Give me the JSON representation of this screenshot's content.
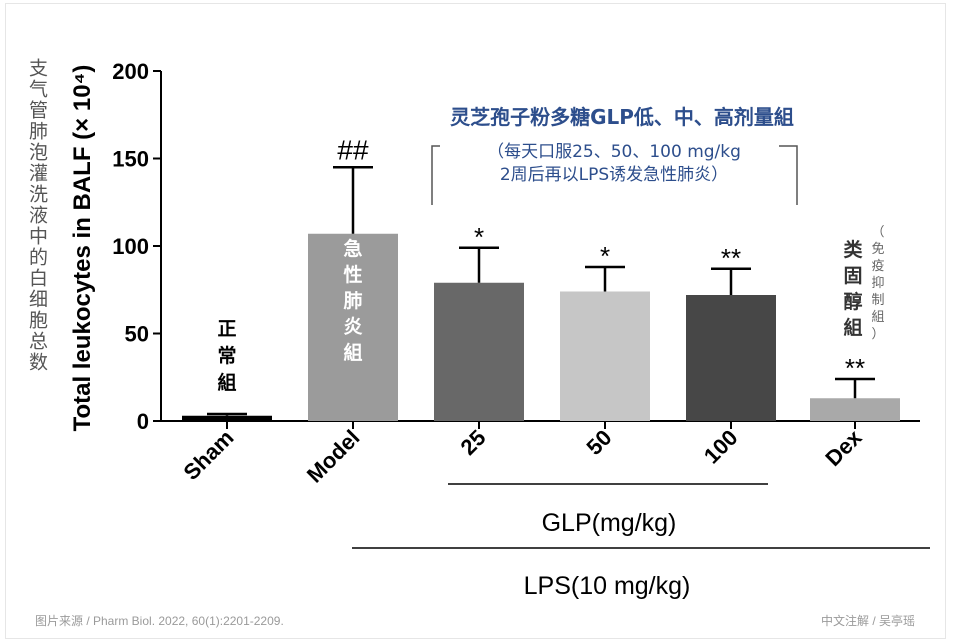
{
  "chart_data": {
    "type": "bar",
    "categories": [
      "Sham",
      "Model",
      "25",
      "50",
      "100",
      "Dex"
    ],
    "values": [
      3,
      107,
      79,
      74,
      72,
      13
    ],
    "errors": [
      1,
      38,
      20,
      14,
      15,
      11
    ],
    "bar_colors": [
      "#000000",
      "#9b9b9b",
      "#686868",
      "#c6c6c6",
      "#474747",
      "#a9a9a9"
    ],
    "significance": [
      "",
      "##",
      "*",
      "*",
      "**",
      "**"
    ],
    "ylabel": "Total leukocytes in BALF (× 10⁴)",
    "ylim": [
      0,
      200
    ],
    "yticks": [
      0,
      50,
      100,
      150,
      200
    ],
    "grid": false,
    "group_labels": {
      "glp": "GLP(mg/kg)",
      "lps": "LPS(10 mg/kg)"
    }
  },
  "annotations": {
    "ylabel_cn": "支气管肺泡灌洗液中的白细胞总数",
    "sham_cn": "正常組",
    "model_cn": "急性肺炎組",
    "glp_title": "灵芝孢子粉多糖GLP低、中、高剂量組",
    "glp_note_1": "（每天口服25、50、100 mg/kg",
    "glp_note_2": "2周后再以LPS诱发急性肺炎）",
    "dex_cn": "类固醇組",
    "dex_note": "（免疫抑制組）"
  },
  "footer": {
    "source": "图片来源 / Pharm Biol. 2022, 60(1):2201-2209.",
    "credit": "中文注解 / 吴亭瑶"
  }
}
